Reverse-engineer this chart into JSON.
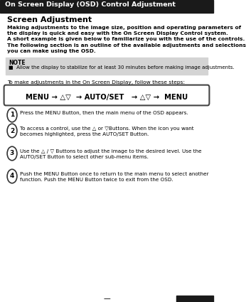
{
  "title_bar_text": "On Screen Display (OSD) Control Adjustment",
  "title_bar_bg": "#1a1a1a",
  "title_bar_text_color": "#ffffff",
  "page_bg": "#ffffff",
  "section_title": "Screen Adjustment",
  "body_lines": [
    "Making adjustments to the image size, position and operating parameters of",
    "the display is quick and easy with the On Screen Display Control system.",
    "A short example is given below to familiarize you with the use of the controls.",
    "The following section is an outline of the available adjustments and selections",
    "you can make using the OSD."
  ],
  "note_bg": "#d4d4d4",
  "note_title": "NOTE",
  "note_body": "■  Allow the display to stabilize for at least 30 minutes before making image adjustments.",
  "steps_intro": "To make adjustments in the On Screen Display, follow these steps:",
  "flow_text": "MENU → △▽  → AUTO/SET   → △▽ →  MENU",
  "flow_box_bg": "#ffffff",
  "flow_box_border": "#444444",
  "steps": [
    "Press the MENU Button, then the main menu of the OSD appears.",
    "To access a control, use the △ or ▽Buttons. When the icon you want\nbecomes highlighted, press the AUTO/SET Button.",
    "Use the △ / ▽ Buttons to adjust the image to the desired level. Use the\nAUTO/SET Button to select other sub-menu items.",
    "Push the MENU Button once to return to the main menu to select another\nfunction. Push the MENU Button twice to exit from the OSD."
  ],
  "step_numbers": [
    "1",
    "2",
    "3",
    "4"
  ],
  "footer_dash": "—"
}
